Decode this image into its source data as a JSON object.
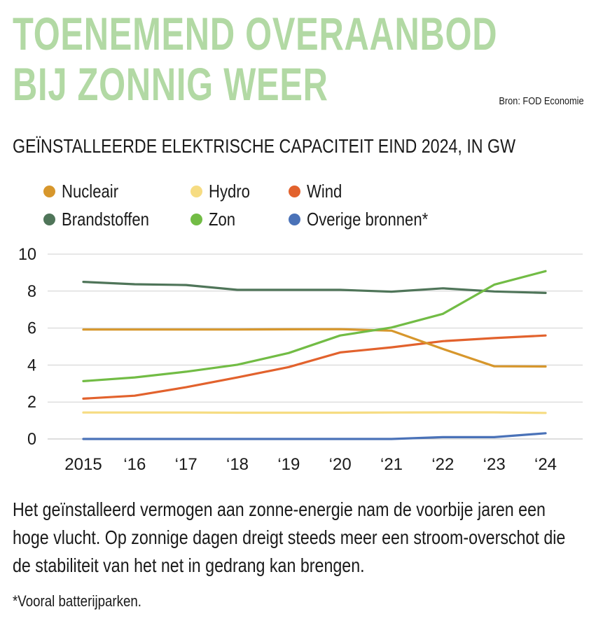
{
  "header": {
    "title_line1": "TOENEMEND OVERAANBOD",
    "title_line2": "BIJ ZONNIG WEER",
    "source": "Bron: FOD Economie",
    "subtitle": "GEÏNSTALLEERDE ELEKTRISCHE CAPACITEIT EIND 2024, IN GW"
  },
  "chart_data": {
    "type": "line",
    "x": [
      "2015",
      "‘16",
      "‘17",
      "‘18",
      "‘19",
      "‘20",
      "‘21",
      "‘22",
      "‘23",
      "‘24"
    ],
    "ylim": [
      0,
      10
    ],
    "yticks": [
      "0",
      "2",
      "4",
      "6",
      "8",
      "10"
    ],
    "grid": true,
    "legend_position": "top",
    "series": [
      {
        "name": "Nucleair",
        "color": "#d7972c",
        "values": [
          5.92,
          5.92,
          5.92,
          5.92,
          5.93,
          5.94,
          5.86,
          4.87,
          3.93,
          3.92
        ]
      },
      {
        "name": "Hydro",
        "color": "#f6dc82",
        "values": [
          1.43,
          1.43,
          1.43,
          1.42,
          1.42,
          1.42,
          1.43,
          1.44,
          1.44,
          1.41
        ]
      },
      {
        "name": "Wind",
        "color": "#e2622d",
        "values": [
          2.18,
          2.34,
          2.8,
          3.33,
          3.89,
          4.68,
          4.96,
          5.29,
          5.46,
          5.6
        ]
      },
      {
        "name": "Brandstoffen",
        "color": "#4f7559",
        "values": [
          8.5,
          8.37,
          8.33,
          8.07,
          8.07,
          8.07,
          7.97,
          8.15,
          7.98,
          7.9
        ]
      },
      {
        "name": "Zon",
        "color": "#72bc45",
        "values": [
          3.13,
          3.33,
          3.64,
          4.02,
          4.65,
          5.6,
          6.03,
          6.77,
          8.35,
          9.08
        ]
      },
      {
        "name": "Overige bronnen*",
        "color": "#4a72b8",
        "values": [
          0.0,
          0.0,
          0.0,
          0.0,
          0.0,
          0.0,
          0.0,
          0.1,
          0.1,
          0.31
        ]
      }
    ]
  },
  "body": {
    "text": "Het geïnstalleerd vermogen aan zonne-energie nam de voorbije jaren een hoge vlucht. Op zonnige dagen dreigt steeds meer een stroom-overschot die de stabiliteit van het net in gedrang kan brengen.",
    "footnote": "*Vooral batterijparken."
  }
}
